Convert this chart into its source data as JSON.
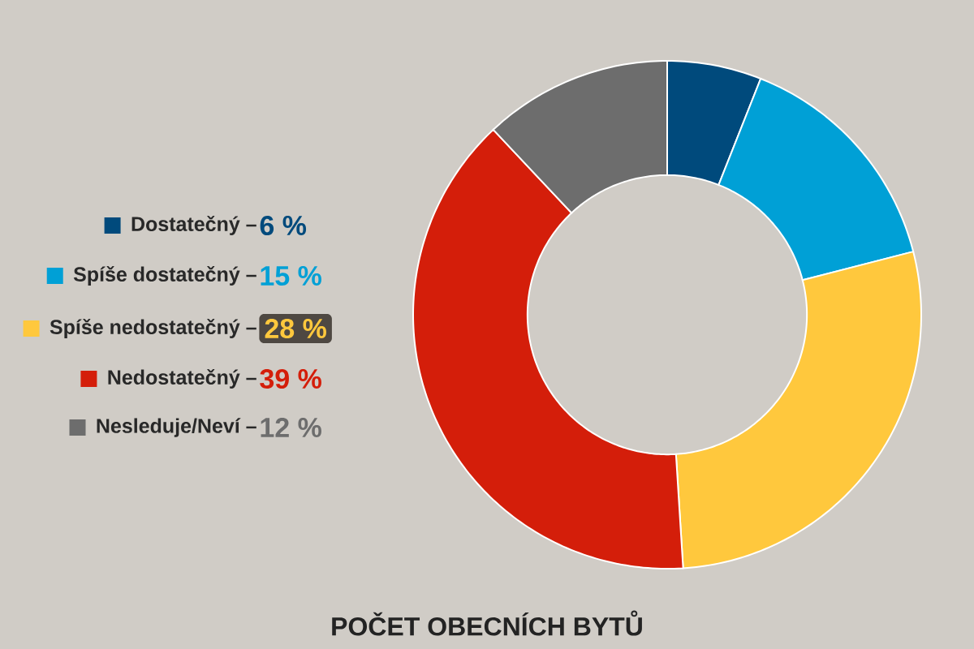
{
  "chart_data": {
    "type": "donut",
    "title": "POČET OBECNÍCH BYTŮ",
    "categories": [
      "Dostatečný –",
      "Spíše dostatečný –",
      "Spíše nedostatečný –",
      "Nedostatečný –",
      "Nesleduje/Neví –"
    ],
    "values": [
      6,
      15,
      28,
      39,
      12
    ],
    "value_labels": [
      "6 %",
      "15 %",
      "28 %",
      "39 %",
      "12 %"
    ],
    "colors": [
      "#004a7c",
      "#00a0d6",
      "#ffc83d",
      "#d41e0a",
      "#6d6d6d"
    ],
    "legend": "left"
  }
}
